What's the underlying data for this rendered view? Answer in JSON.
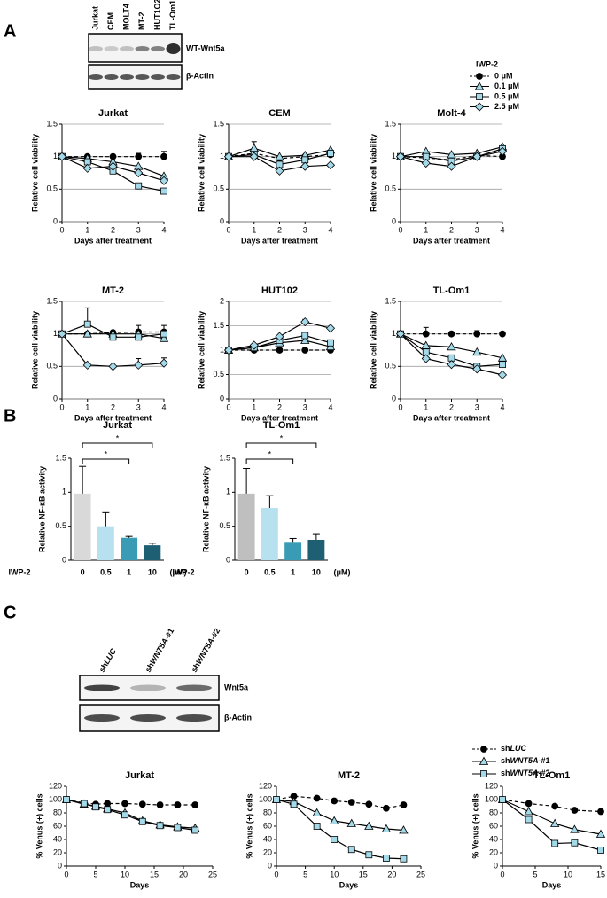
{
  "panel_labels": [
    "A",
    "B",
    "C"
  ],
  "blot_a": {
    "lanes": [
      "Jurkat",
      "CEM",
      "MOLT4",
      "MT-2",
      "HUT1O2",
      "TL-Om1"
    ],
    "rows": [
      "WT-Wnt5a",
      "β-Actin"
    ]
  },
  "legend_a": {
    "title": "IWP-2",
    "entries": [
      {
        "name": "0 μM",
        "color": "#000000",
        "marker": "circle",
        "dash": true
      },
      {
        "name": "0.1 μM",
        "color": "#a3d9e8",
        "marker": "triangle",
        "dash": false
      },
      {
        "name": "0.5 μM",
        "color": "#a3d9e8",
        "marker": "square",
        "dash": false
      },
      {
        "name": "2.5 μM",
        "color": "#a3d9e8",
        "marker": "diamond",
        "dash": false
      }
    ]
  },
  "blot_c": {
    "lanes": [
      [
        "sh",
        "LUC"
      ],
      [
        "sh",
        "WNT5A",
        "-#1"
      ],
      [
        "sh",
        "WNT5A",
        "-#2"
      ]
    ],
    "rows": [
      "Wnt5a",
      "β-Actin"
    ]
  },
  "legend_c": {
    "entries": [
      {
        "parts": [
          "sh",
          "LUC"
        ],
        "color": "#000000",
        "marker": "circle",
        "dash": true
      },
      {
        "parts": [
          "sh",
          "WNT5A",
          "-#1"
        ],
        "color": "#a3d9e8",
        "marker": "triangle",
        "dash": false
      },
      {
        "parts": [
          "sh",
          "WNT5A",
          "-#2"
        ],
        "color": "#a3d9e8",
        "marker": "square",
        "dash": false
      }
    ]
  },
  "chart_data": [
    {
      "type": "line",
      "title": "Jurkat",
      "x": [
        0,
        1,
        2,
        3,
        4
      ],
      "xlim": [
        0,
        4
      ],
      "xticks": [
        0,
        1,
        2,
        3,
        4
      ],
      "ylim": [
        0,
        1.5
      ],
      "yticks": [
        0,
        0.5,
        1,
        1.5
      ],
      "xlabel": "Days after treatment",
      "ylabel": "Relative cell viability",
      "grid": true,
      "series": [
        {
          "values": [
            1,
            1,
            1,
            1,
            1
          ],
          "errors": [
            0,
            0,
            0,
            0.05,
            0.08
          ]
        },
        {
          "values": [
            1,
            0.97,
            0.92,
            0.85,
            0.7
          ]
        },
        {
          "values": [
            1,
            0.92,
            0.78,
            0.55,
            0.47
          ]
        },
        {
          "values": [
            1,
            0.82,
            0.85,
            0.75,
            0.63
          ]
        }
      ]
    },
    {
      "type": "line",
      "title": "CEM",
      "x": [
        0,
        1,
        2,
        3,
        4
      ],
      "xlim": [
        0,
        4
      ],
      "xticks": [
        0,
        1,
        2,
        3,
        4
      ],
      "ylim": [
        0,
        1.5
      ],
      "yticks": [
        0,
        0.5,
        1,
        1.5
      ],
      "xlabel": "Days after treatment",
      "ylabel": "Relative cell viability",
      "grid": true,
      "series": [
        {
          "values": [
            1,
            1.05,
            0.97,
            1,
            1.03
          ]
        },
        {
          "values": [
            1,
            1.13,
            1,
            1.02,
            1.1
          ],
          "errors": [
            0,
            0.1,
            0,
            0,
            0
          ]
        },
        {
          "values": [
            1,
            1.03,
            0.88,
            0.95,
            1.05
          ]
        },
        {
          "values": [
            1,
            1,
            0.78,
            0.85,
            0.87
          ]
        }
      ]
    },
    {
      "type": "line",
      "title": "Molt-4",
      "x": [
        0,
        1,
        2,
        3,
        4
      ],
      "xlim": [
        0,
        4
      ],
      "xticks": [
        0,
        1,
        2,
        3,
        4
      ],
      "ylim": [
        0,
        1.5
      ],
      "yticks": [
        0,
        0.5,
        1,
        1.5
      ],
      "xlabel": "Days after treatment",
      "ylabel": "Relative cell viability",
      "grid": true,
      "series": [
        {
          "values": [
            1,
            0.98,
            0.95,
            1.02,
            1
          ]
        },
        {
          "values": [
            1,
            1.08,
            1.03,
            1.05,
            1.15
          ]
        },
        {
          "values": [
            1,
            1,
            0.93,
            1,
            1.12
          ]
        },
        {
          "values": [
            1,
            0.9,
            0.85,
            1,
            1.08
          ]
        }
      ]
    },
    {
      "type": "line",
      "title": "MT-2",
      "x": [
        0,
        1,
        2,
        3,
        4
      ],
      "xlim": [
        0,
        4
      ],
      "xticks": [
        0,
        1,
        2,
        3,
        4
      ],
      "ylim": [
        0,
        1.5
      ],
      "yticks": [
        0,
        0.5,
        1,
        1.5
      ],
      "xlabel": "Days after treatment",
      "ylabel": "Relative cell viability",
      "grid": true,
      "series": [
        {
          "values": [
            1,
            1,
            1.02,
            1.03,
            1.03
          ],
          "errors": [
            0,
            0,
            0,
            0.1,
            0.1
          ]
        },
        {
          "values": [
            1,
            1,
            1,
            1,
            0.93
          ]
        },
        {
          "values": [
            1,
            1.15,
            0.95,
            0.95,
            1
          ],
          "errors": [
            0,
            0.25,
            0,
            0,
            0
          ]
        },
        {
          "values": [
            1,
            0.52,
            0.5,
            0.52,
            0.55
          ],
          "errors": [
            0,
            0,
            0,
            0.1,
            0.08
          ]
        }
      ]
    },
    {
      "type": "line",
      "title": "HUT102",
      "x": [
        0,
        1,
        2,
        3,
        4
      ],
      "xlim": [
        0,
        4
      ],
      "xticks": [
        0,
        1,
        2,
        3,
        4
      ],
      "ylim": [
        0,
        2
      ],
      "yticks": [
        0,
        0.5,
        1,
        1.5,
        2
      ],
      "xlabel": "Days after treatment",
      "ylabel": "Relative cell viability",
      "grid": true,
      "series": [
        {
          "values": [
            1,
            1,
            1,
            1,
            1
          ]
        },
        {
          "values": [
            1,
            1.05,
            1.15,
            1.2,
            1.07
          ]
        },
        {
          "values": [
            1,
            1.05,
            1.2,
            1.3,
            1.15
          ]
        },
        {
          "values": [
            1,
            1.1,
            1.28,
            1.58,
            1.45
          ],
          "errors": [
            0,
            0,
            0,
            0.05,
            0
          ]
        }
      ]
    },
    {
      "type": "line",
      "title": "TL-Om1",
      "x": [
        0,
        1,
        2,
        3,
        4
      ],
      "xlim": [
        0,
        4
      ],
      "xticks": [
        0,
        1,
        2,
        3,
        4
      ],
      "ylim": [
        0,
        1.5
      ],
      "yticks": [
        0,
        0.5,
        1,
        1.5
      ],
      "xlabel": "Days after treatment",
      "ylabel": "Relative cell viability",
      "grid": true,
      "series": [
        {
          "values": [
            1,
            1,
            1,
            1,
            1
          ],
          "errors": [
            0,
            0.1,
            0,
            0.05,
            0
          ]
        },
        {
          "values": [
            1,
            0.82,
            0.8,
            0.72,
            0.63
          ]
        },
        {
          "values": [
            1,
            0.72,
            0.63,
            0.5,
            0.53
          ]
        },
        {
          "values": [
            1,
            0.62,
            0.53,
            0.46,
            0.37
          ]
        }
      ]
    },
    {
      "type": "bar",
      "title": "Jurkat",
      "categories": [
        "0",
        "0.5",
        "1",
        "10"
      ],
      "values": [
        0.98,
        0.5,
        0.33,
        0.22
      ],
      "errors": [
        0.4,
        0.2,
        0.02,
        0.03
      ],
      "colors": [
        "#d9d9d9",
        "#b7e1ee",
        "#3a9cb4",
        "#1f5f73"
      ],
      "xlabel": "IWP-2",
      "unit": "(μM)",
      "ylabel": "Relative NF-κB activity",
      "ylim": [
        0,
        1.5
      ],
      "yticks": [
        0,
        0.5,
        1,
        1.5
      ],
      "annotations": [
        "*",
        "*"
      ]
    },
    {
      "type": "bar",
      "title": "TL-Om1",
      "categories": [
        "0",
        "0.5",
        "1",
        "10"
      ],
      "values": [
        0.98,
        0.77,
        0.27,
        0.3
      ],
      "errors": [
        0.37,
        0.18,
        0.05,
        0.09
      ],
      "colors": [
        "#bfbfbf",
        "#b7e1ee",
        "#3a9cb4",
        "#1f5f73"
      ],
      "xlabel": "IWP-2",
      "unit": "(μM)",
      "ylabel": "Relative NF-κB activity",
      "ylim": [
        0,
        1.5
      ],
      "yticks": [
        0,
        0.5,
        1,
        1.5
      ],
      "annotations": [
        "*",
        "*"
      ]
    },
    {
      "type": "line",
      "title": "Jurkat",
      "x": [
        0,
        3,
        5,
        7,
        10,
        13,
        16,
        19,
        22
      ],
      "xlim": [
        0,
        25
      ],
      "xticks": [
        0,
        5,
        10,
        15,
        20,
        25
      ],
      "ylim": [
        0,
        120
      ],
      "yticks": [
        0,
        20,
        40,
        60,
        80,
        100,
        120
      ],
      "xlabel": "Days",
      "ylabel": "% Venus (+) cells",
      "grid": false,
      "series": [
        {
          "values": [
            100,
            95,
            93,
            94,
            94,
            93,
            92,
            92,
            92
          ]
        },
        {
          "values": [
            100,
            93,
            90,
            86,
            80,
            68,
            62,
            59,
            57
          ]
        },
        {
          "values": [
            100,
            94,
            89,
            85,
            77,
            67,
            61,
            58,
            54
          ]
        }
      ]
    },
    {
      "type": "line",
      "title": "MT-2",
      "x": [
        0,
        3,
        7,
        10,
        13,
        16,
        19,
        22
      ],
      "xlim": [
        0,
        25
      ],
      "xticks": [
        0,
        5,
        10,
        15,
        20,
        25
      ],
      "ylim": [
        0,
        120
      ],
      "yticks": [
        0,
        20,
        40,
        60,
        80,
        100,
        120
      ],
      "xlabel": "Days",
      "ylabel": "% Venus (+) cells",
      "grid": false,
      "series": [
        {
          "values": [
            100,
            105,
            102,
            98,
            96,
            93,
            87,
            92
          ]
        },
        {
          "values": [
            100,
            97,
            80,
            68,
            64,
            60,
            56,
            54
          ]
        },
        {
          "values": [
            100,
            93,
            60,
            40,
            25,
            17,
            12,
            11
          ]
        }
      ]
    },
    {
      "type": "line",
      "title": "TL-Om1",
      "x": [
        0,
        4,
        8,
        11,
        15
      ],
      "xlim": [
        0,
        15
      ],
      "xticks": [
        0,
        5,
        10,
        15
      ],
      "ylim": [
        0,
        120
      ],
      "yticks": [
        0,
        20,
        40,
        60,
        80,
        100,
        120
      ],
      "xlabel": "Days",
      "ylabel": "% Venus (+) cells",
      "grid": false,
      "series": [
        {
          "values": [
            100,
            94,
            90,
            84,
            82
          ]
        },
        {
          "values": [
            100,
            82,
            64,
            55,
            48
          ]
        },
        {
          "values": [
            100,
            70,
            34,
            35,
            24
          ]
        }
      ]
    }
  ]
}
